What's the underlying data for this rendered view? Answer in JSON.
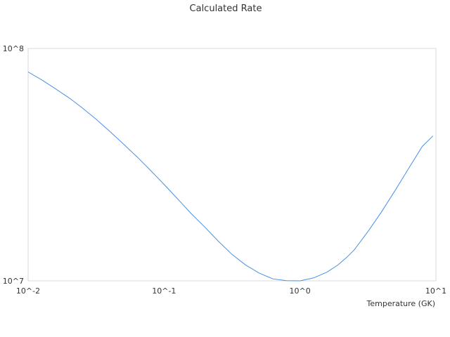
{
  "chart_data": {
    "type": "line",
    "title": "Calculated Rate",
    "xlabel": "Temperature (GK)",
    "ylabel": "",
    "x_scale": "log",
    "y_scale": "log",
    "xlim": [
      0.01,
      10
    ],
    "ylim": [
      10000000,
      100000000
    ],
    "grid": false,
    "x_tick_values": [
      0.01,
      0.1,
      1,
      10
    ],
    "x_tick_labels": [
      "10^-2",
      "10^-1",
      "10^0",
      "10^1"
    ],
    "y_tick_values": [
      10000000,
      100000000
    ],
    "y_tick_labels": [
      "10^7",
      "10^8"
    ],
    "series": [
      {
        "color": "#4a90e2",
        "x": [
          0.01,
          0.0126,
          0.0158,
          0.02,
          0.0251,
          0.0316,
          0.0398,
          0.05,
          0.0631,
          0.0794,
          0.1,
          0.126,
          0.158,
          0.2,
          0.251,
          0.316,
          0.398,
          0.5,
          0.631,
          0.794,
          1.0,
          1.26,
          1.58,
          1.9,
          2.2,
          2.51,
          3.16,
          3.98,
          5.01,
          6.31,
          7.94,
          9.5
        ],
        "y": [
          79200000,
          73200000,
          67200000,
          61300000,
          55400000,
          49600000,
          44000000,
          38900000,
          34200000,
          29900000,
          26000000,
          22500000,
          19500000,
          17000000,
          14800000,
          13000000,
          11700000,
          10800000,
          10200000,
          10020000,
          10000000,
          10300000,
          10900000,
          11700000,
          12600000,
          13600000,
          16300000,
          19800000,
          24500000,
          30500000,
          37900000,
          42000000
        ]
      }
    ]
  }
}
